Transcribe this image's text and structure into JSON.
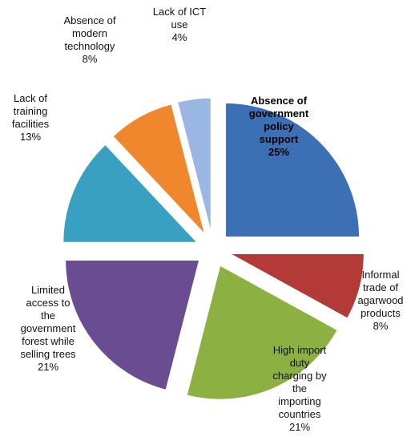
{
  "chart_data": {
    "type": "pie",
    "title": "",
    "exploded": true,
    "slices": [
      {
        "label": [
          "Absence of",
          "government",
          "policy",
          "support"
        ],
        "value": 25,
        "value_label": "25%",
        "color": "#3d6fb4"
      },
      {
        "label": [
          "Informal",
          "trade of",
          "agarwood",
          "products"
        ],
        "value": 8,
        "value_label": "8%",
        "color": "#b33a37"
      },
      {
        "label": [
          "High import",
          "duty",
          "charging by",
          "the",
          "importing",
          "countries"
        ],
        "value": 21,
        "value_label": "21%",
        "color": "#8db043"
      },
      {
        "label": [
          "Limited",
          "access to",
          "the",
          "government",
          "forest while",
          "selling trees"
        ],
        "value": 21,
        "value_label": "21%",
        "color": "#6a4c93"
      },
      {
        "label": [
          "Lack of",
          "training",
          "facilities"
        ],
        "value": 13,
        "value_label": "13%",
        "color": "#3aa0c2"
      },
      {
        "label": [
          "Absence of",
          "modern",
          "technology"
        ],
        "value": 8,
        "value_label": "8%",
        "color": "#f0872d"
      },
      {
        "label": [
          "Lack of ICT",
          "use"
        ],
        "value": 4,
        "value_label": "4%",
        "color": "#9ab6e2"
      }
    ]
  }
}
